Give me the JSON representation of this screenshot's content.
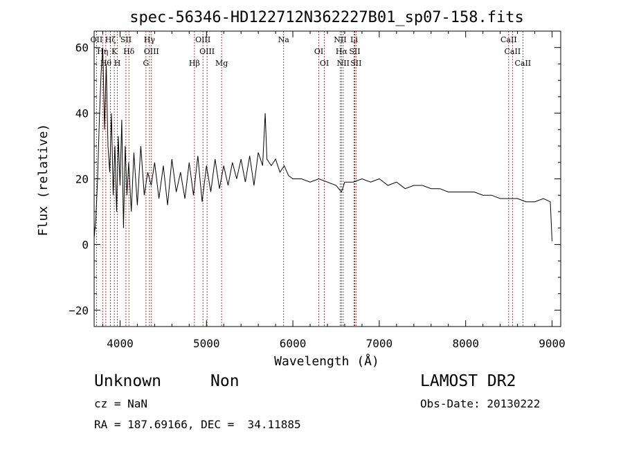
{
  "chart_data": {
    "type": "line",
    "title": "spec-56346-HD122712N362227B01_sp07-158.fits",
    "xlabel": "Wavelength (Å)",
    "ylabel": "Flux (relative)",
    "xlim": [
      3700,
      9100
    ],
    "ylim": [
      -25,
      65
    ],
    "xticks": [
      4000,
      5000,
      6000,
      7000,
      8000,
      9000
    ],
    "yticks": [
      -20,
      0,
      20,
      40,
      60
    ],
    "line_color": "#000000",
    "marker_color": "#a00000",
    "series": [
      {
        "x": [
          3700,
          3720,
          3740,
          3760,
          3780,
          3800,
          3820,
          3840,
          3860,
          3880,
          3900,
          3920,
          3940,
          3960,
          3980,
          4000,
          4020,
          4040,
          4060,
          4080,
          4100,
          4130,
          4160,
          4200,
          4240,
          4280,
          4320,
          4360,
          4400,
          4450,
          4500,
          4550,
          4600,
          4650,
          4700,
          4750,
          4800,
          4850,
          4900,
          4950,
          5000,
          5050,
          5100,
          5150,
          5200,
          5250,
          5300,
          5350,
          5400,
          5450,
          5500,
          5550,
          5600,
          5650,
          5680,
          5700,
          5750,
          5800,
          5850,
          5900,
          5950,
          6000,
          6100,
          6200,
          6300,
          6400,
          6500,
          6563,
          6600,
          6700,
          6800,
          6900,
          7000,
          7100,
          7200,
          7300,
          7400,
          7500,
          7600,
          7700,
          7800,
          7900,
          8000,
          8100,
          8200,
          8300,
          8400,
          8500,
          8600,
          8700,
          8800,
          8900,
          8980,
          9000
        ],
        "y": [
          2,
          8,
          20,
          38,
          52,
          60,
          35,
          55,
          30,
          22,
          40,
          15,
          30,
          10,
          33,
          18,
          38,
          5,
          30,
          15,
          25,
          10,
          28,
          12,
          30,
          15,
          22,
          18,
          25,
          14,
          24,
          12,
          26,
          16,
          22,
          14,
          25,
          15,
          27,
          13,
          24,
          16,
          26,
          17,
          24,
          18,
          25,
          20,
          26,
          19,
          27,
          18,
          28,
          24,
          40,
          26,
          24,
          26,
          22,
          24,
          21,
          20,
          20,
          19,
          20,
          19,
          18,
          16,
          19,
          19,
          20,
          19,
          20,
          18,
          19,
          17,
          18,
          18,
          17,
          17,
          16,
          16,
          16,
          16,
          15,
          15,
          14,
          14,
          14,
          13,
          13,
          14,
          13,
          1
        ]
      }
    ],
    "lines": {
      "top": [
        {
          "wl": 3727,
          "label": "OII"
        },
        {
          "wl": 3798,
          "label": "Hη"
        },
        {
          "wl": 3835,
          "label": "Hθ"
        },
        {
          "wl": 3889,
          "label": "Hζ"
        },
        {
          "wl": 3933,
          "label": "K"
        },
        {
          "wl": 3969,
          "label": "H"
        },
        {
          "wl": 4068,
          "label": "SII"
        },
        {
          "wl": 4102,
          "label": "Hδ"
        },
        {
          "wl": 4300,
          "label": "G"
        },
        {
          "wl": 4340,
          "label": "Hγ"
        },
        {
          "wl": 4363,
          "label": "OIII"
        },
        {
          "wl": 4861,
          "label": "Hβ"
        },
        {
          "wl": 4959,
          "label": "OIII"
        },
        {
          "wl": 5007,
          "label": "OIII"
        },
        {
          "wl": 5175,
          "label": "Mg"
        },
        {
          "wl": 5893,
          "label": "Na"
        },
        {
          "wl": 6300,
          "label": "OI"
        },
        {
          "wl": 6364,
          "label": "OI"
        },
        {
          "wl": 6548,
          "label": "NII"
        },
        {
          "wl": 6563,
          "label": "Hα"
        },
        {
          "wl": 6583,
          "label": "NII"
        },
        {
          "wl": 6708,
          "label": "Li"
        },
        {
          "wl": 6716,
          "label": "SII"
        },
        {
          "wl": 6731,
          "label": "SII"
        },
        {
          "wl": 8498,
          "label": "CaII"
        },
        {
          "wl": 8542,
          "label": "CaII"
        },
        {
          "wl": 8662,
          "label": "CaII"
        }
      ]
    }
  },
  "info": {
    "class_label": "Unknown",
    "subclass_label": "Non",
    "survey_label": "LAMOST DR2",
    "cz_text": "cz = NaN",
    "obs_date_text": "Obs-Date: 20130222",
    "radec_text": "RA = 187.69166, DEC =  34.11885"
  }
}
